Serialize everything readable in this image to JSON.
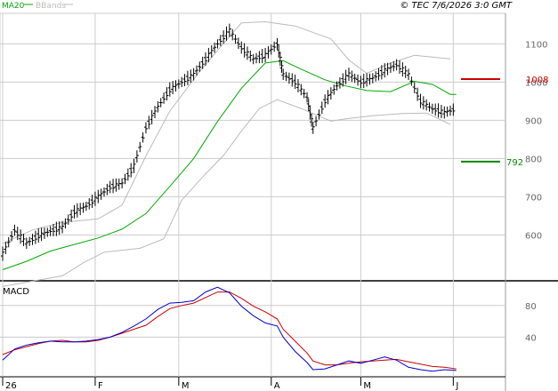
{
  "legend": {
    "ma_label": "MA20",
    "bb_label": "BBands",
    "ma_color": "#00aa00",
    "bb_color": "#bbbbbb"
  },
  "copyright": "© TEC 7/6/2026 3:0 GMT",
  "macd_title": "MACD",
  "colors": {
    "candle": "#000000",
    "resistance": "#cc0000",
    "support": "#008800",
    "macd_line": "#0000cc",
    "signal_line": "#cc0000",
    "grid": "#cccccc"
  },
  "chart_data": [
    {
      "type": "line",
      "title": "",
      "y_ticks": [
        600,
        700,
        800,
        900,
        1000,
        1100
      ],
      "ylim": [
        480,
        1180
      ],
      "x_ticks": [
        {
          "label": "26",
          "day": 0
        },
        {
          "label": "F",
          "day": 31
        },
        {
          "label": "M",
          "day": 59
        },
        {
          "label": "A",
          "day": 90
        },
        {
          "label": "M",
          "day": 120
        },
        {
          "label": "J",
          "day": 151
        }
      ],
      "xlim": [
        0,
        167
      ],
      "levels": {
        "resistance": {
          "value": 1008,
          "label": "1008"
        },
        "support": {
          "value": 792,
          "label": "792"
        }
      },
      "series": [
        {
          "name": "MA20",
          "kind": "line",
          "points": [
            [
              0,
              509
            ],
            [
              8,
              531
            ],
            [
              16,
              558
            ],
            [
              24,
              575
            ],
            [
              32,
              592
            ],
            [
              40,
              615
            ],
            [
              48,
              656
            ],
            [
              56,
              727
            ],
            [
              64,
              800
            ],
            [
              72,
              897
            ],
            [
              80,
              984
            ],
            [
              88,
              1050
            ],
            [
              94,
              1056
            ],
            [
              100,
              1034
            ],
            [
              108,
              1006
            ],
            [
              115,
              990
            ],
            [
              122,
              978
            ],
            [
              130,
              975
            ],
            [
              138,
              1002
            ],
            [
              144,
              994
            ],
            [
              150,
              968
            ],
            [
              152,
              968
            ]
          ]
        },
        {
          "name": "BBands upper",
          "kind": "line",
          "points": [
            [
              0,
              578
            ],
            [
              10,
              613
            ],
            [
              20,
              633
            ],
            [
              32,
              642
            ],
            [
              40,
              678
            ],
            [
              48,
              807
            ],
            [
              56,
              924
            ],
            [
              66,
              1028
            ],
            [
              74,
              1101
            ],
            [
              80,
              1155
            ],
            [
              88,
              1158
            ],
            [
              98,
              1147
            ],
            [
              110,
              1113
            ],
            [
              116,
              1058
            ],
            [
              122,
              1023
            ],
            [
              130,
              1050
            ],
            [
              138,
              1070
            ],
            [
              150,
              1061
            ]
          ]
        },
        {
          "name": "BBands lower",
          "kind": "line",
          "points": [
            [
              0,
              465
            ],
            [
              10,
              479
            ],
            [
              20,
              493
            ],
            [
              27,
              527
            ],
            [
              34,
              555
            ],
            [
              46,
              565
            ],
            [
              54,
              590
            ],
            [
              60,
              691
            ],
            [
              68,
              760
            ],
            [
              74,
              808
            ],
            [
              80,
              872
            ],
            [
              86,
              931
            ],
            [
              92,
              954
            ],
            [
              100,
              931
            ],
            [
              110,
              898
            ],
            [
              116,
              905
            ],
            [
              124,
              912
            ],
            [
              134,
              918
            ],
            [
              142,
              919
            ],
            [
              150,
              889
            ]
          ]
        },
        {
          "name": "Price",
          "kind": "bar",
          "points": [
            [
              0,
              550
            ],
            [
              4,
              612
            ],
            [
              8,
              578
            ],
            [
              12,
              598
            ],
            [
              16,
              610
            ],
            [
              20,
              620
            ],
            [
              24,
              660
            ],
            [
              28,
              675
            ],
            [
              32,
              700
            ],
            [
              36,
              725
            ],
            [
              40,
              735
            ],
            [
              44,
              780
            ],
            [
              48,
              880
            ],
            [
              52,
              935
            ],
            [
              56,
              980
            ],
            [
              60,
              1000
            ],
            [
              64,
              1020
            ],
            [
              68,
              1060
            ],
            [
              72,
              1100
            ],
            [
              76,
              1135
            ],
            [
              80,
              1090
            ],
            [
              84,
              1060
            ],
            [
              88,
              1070
            ],
            [
              92,
              1100
            ],
            [
              94,
              1020
            ],
            [
              98,
              1000
            ],
            [
              102,
              960
            ],
            [
              104,
              880
            ],
            [
              108,
              950
            ],
            [
              112,
              990
            ],
            [
              116,
              1020
            ],
            [
              120,
              1000
            ],
            [
              124,
              1010
            ],
            [
              128,
              1030
            ],
            [
              132,
              1045
            ],
            [
              136,
              1020
            ],
            [
              140,
              950
            ],
            [
              144,
              930
            ],
            [
              148,
              920
            ],
            [
              152,
              930
            ]
          ]
        }
      ]
    },
    {
      "type": "line",
      "title": "MACD",
      "y_ticks": [
        40,
        80
      ],
      "ylim": [
        -10,
        110
      ],
      "series": [
        {
          "name": "MACD",
          "kind": "line",
          "points": [
            [
              0,
              11
            ],
            [
              4,
              25
            ],
            [
              8,
              30
            ],
            [
              12,
              33
            ],
            [
              16,
              35
            ],
            [
              20,
              34
            ],
            [
              24,
              34
            ],
            [
              28,
              35
            ],
            [
              32,
              37
            ],
            [
              36,
              40
            ],
            [
              40,
              46
            ],
            [
              44,
              54
            ],
            [
              48,
              63
            ],
            [
              52,
              75
            ],
            [
              56,
              83
            ],
            [
              60,
              84
            ],
            [
              64,
              86
            ],
            [
              68,
              97
            ],
            [
              72,
              103
            ],
            [
              76,
              96
            ],
            [
              80,
              79
            ],
            [
              84,
              67
            ],
            [
              88,
              58
            ],
            [
              92,
              54
            ],
            [
              94,
              40
            ],
            [
              98,
              22
            ],
            [
              102,
              8
            ],
            [
              104,
              -1
            ],
            [
              108,
              0
            ],
            [
              112,
              5
            ],
            [
              116,
              10
            ],
            [
              120,
              7
            ],
            [
              124,
              11
            ],
            [
              128,
              15
            ],
            [
              132,
              11
            ],
            [
              136,
              2
            ],
            [
              140,
              -1
            ],
            [
              144,
              -3
            ],
            [
              148,
              -1
            ],
            [
              152,
              -2
            ]
          ]
        },
        {
          "name": "Signal",
          "kind": "line",
          "points": [
            [
              0,
              18
            ],
            [
              4,
              24
            ],
            [
              8,
              28
            ],
            [
              12,
              32
            ],
            [
              16,
              35
            ],
            [
              20,
              36
            ],
            [
              24,
              34
            ],
            [
              28,
              34
            ],
            [
              32,
              36
            ],
            [
              36,
              40
            ],
            [
              40,
              45
            ],
            [
              44,
              50
            ],
            [
              48,
              55
            ],
            [
              52,
              66
            ],
            [
              56,
              76
            ],
            [
              60,
              80
            ],
            [
              64,
              83
            ],
            [
              68,
              90
            ],
            [
              72,
              97
            ],
            [
              76,
              97
            ],
            [
              80,
              89
            ],
            [
              84,
              79
            ],
            [
              88,
              72
            ],
            [
              92,
              63
            ],
            [
              94,
              50
            ],
            [
              98,
              35
            ],
            [
              102,
              20
            ],
            [
              104,
              10
            ],
            [
              108,
              5
            ],
            [
              112,
              5
            ],
            [
              116,
              7
            ],
            [
              120,
              9
            ],
            [
              124,
              10
            ],
            [
              128,
              11
            ],
            [
              132,
              12
            ],
            [
              136,
              9
            ],
            [
              140,
              6
            ],
            [
              144,
              3
            ],
            [
              148,
              2
            ],
            [
              152,
              0
            ]
          ]
        }
      ]
    }
  ]
}
